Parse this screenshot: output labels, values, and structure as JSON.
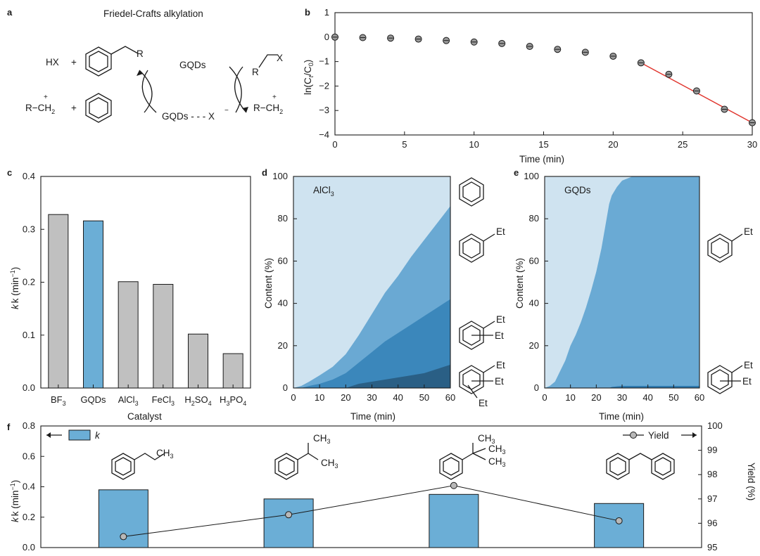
{
  "panel_labels": {
    "a": "a",
    "b": "b",
    "c": "c",
    "d": "d",
    "e": "e",
    "f": "f"
  },
  "scheme": {
    "title": "Friedel-Crafts alkylation",
    "hx": "HX",
    "plus": "+",
    "r_sub": "R",
    "carbocation": "R−CH",
    "carbocation_sub": "2",
    "plus_charge": "+",
    "gqds": "GQDs",
    "complex": "GQDs - - - X",
    "minus_charge": "−",
    "x_sub": "X",
    "r_reagent": "R"
  },
  "structures": {
    "et": "Et",
    "ch3": "CH",
    "ch3_sub": "3"
  },
  "chart_data": [
    {
      "id": "b",
      "type": "scatter",
      "title": "",
      "xlabel": "Time (min)",
      "ylabel": "ln(C",
      "ylabel_sub1": "t",
      "ylabel_mid": "/C",
      "ylabel_sub2": "0",
      "ylabel_end": ")",
      "xlim": [
        0,
        30
      ],
      "ylim": [
        -4,
        1
      ],
      "xticks": [
        0,
        5,
        10,
        15,
        20,
        25,
        30
      ],
      "yticks": [
        1,
        0,
        -1,
        -2,
        -3,
        -4
      ],
      "x": [
        0,
        2,
        4,
        6,
        8,
        10,
        12,
        14,
        16,
        18,
        20,
        22,
        24,
        26,
        28,
        30
      ],
      "y": [
        0,
        -0.02,
        -0.04,
        -0.08,
        -0.14,
        -0.2,
        -0.26,
        -0.38,
        -0.5,
        -0.62,
        -0.78,
        -1.05,
        -1.52,
        -2.2,
        -2.95,
        -3.5
      ],
      "fit_line": {
        "x": [
          22,
          30
        ],
        "y": [
          -1.05,
          -3.5
        ],
        "color": "#e0332b"
      }
    },
    {
      "id": "c",
      "type": "bar",
      "xlabel": "Catalyst",
      "ylabel": "k (min",
      "ylabel_sup": "−1",
      "ylabel_end": ")",
      "ylim": [
        0,
        0.4
      ],
      "yticks": [
        0.0,
        0.1,
        0.2,
        0.3,
        0.4
      ],
      "ytick_labels": [
        "0.0",
        "0.1",
        "0.2",
        "0.3",
        "0.4"
      ],
      "categories": [
        {
          "main": "BF",
          "sub": "3",
          "tail": "",
          "sub2": ""
        },
        {
          "main": "GQDs",
          "sub": "",
          "tail": "",
          "sub2": ""
        },
        {
          "main": "AlCl",
          "sub": "3",
          "tail": "",
          "sub2": ""
        },
        {
          "main": "FeCl",
          "sub": "3",
          "tail": "",
          "sub2": ""
        },
        {
          "main": "H",
          "sub": "2",
          "tail": "SO",
          "sub2": "4"
        },
        {
          "main": "H",
          "sub": "3",
          "tail": "PO",
          "sub2": "4"
        }
      ],
      "values": [
        0.328,
        0.316,
        0.201,
        0.196,
        0.102,
        0.065
      ],
      "colors": [
        "#c0c0c0",
        "#6baed6",
        "#c0c0c0",
        "#c0c0c0",
        "#c0c0c0",
        "#c0c0c0"
      ]
    },
    {
      "id": "d",
      "type": "area",
      "label": "AlCl",
      "label_sub": "3",
      "xlabel": "Time (min)",
      "ylabel": "Content (%)",
      "xlim": [
        0,
        60
      ],
      "ylim": [
        0,
        100
      ],
      "xticks": [
        0,
        10,
        20,
        30,
        40,
        50,
        60
      ],
      "yticks": [
        0,
        20,
        40,
        60,
        80,
        100
      ],
      "x": [
        0,
        3,
        6,
        10,
        15,
        20,
        25,
        30,
        35,
        40,
        45,
        50,
        55,
        60
      ],
      "boundaries": [
        {
          "name": "ethylbenzene+",
          "values": [
            0,
            1,
            3,
            6,
            10,
            16,
            25,
            35,
            45,
            53,
            62,
            70,
            78,
            86
          ],
          "color": "#6aa9d3"
        },
        {
          "name": "diethylbenzene+",
          "values": [
            0,
            0,
            1,
            2,
            4,
            7,
            12,
            17,
            22,
            26,
            30,
            34,
            38,
            42
          ],
          "color": "#3b87bb"
        },
        {
          "name": "triethylbenzene",
          "values": [
            0,
            0,
            0,
            0,
            0,
            0,
            2,
            3,
            4,
            5,
            6,
            7,
            9,
            11
          ],
          "color": "#2a5f85"
        }
      ],
      "background": "#cfe3f0"
    },
    {
      "id": "e",
      "type": "area",
      "label": "GQDs",
      "xlabel": "Time (min)",
      "ylabel": "Content (%)",
      "xlim": [
        0,
        60
      ],
      "ylim": [
        0,
        100
      ],
      "xticks": [
        0,
        10,
        20,
        30,
        40,
        50,
        60
      ],
      "yticks": [
        0,
        20,
        40,
        60,
        80,
        100
      ],
      "x": [
        0,
        2,
        4,
        6,
        8,
        10,
        12,
        14,
        16,
        18,
        20,
        22,
        24,
        25,
        26,
        28,
        30,
        32,
        34,
        60
      ],
      "boundaries": [
        {
          "name": "ethylbenzene+",
          "values": [
            0,
            1,
            3,
            8,
            13,
            20,
            25,
            31,
            38,
            46,
            55,
            66,
            80,
            87,
            91,
            95,
            98,
            99,
            100,
            100
          ],
          "color": "#6aaad4"
        },
        {
          "name": "triethylbenzene",
          "values": [
            0,
            0,
            0,
            0,
            0,
            0,
            0,
            0,
            0,
            0,
            0,
            0,
            0,
            0,
            0.5,
            0.8,
            1,
            1,
            1,
            1
          ],
          "color": "#2f7ab0"
        }
      ],
      "background": "#cfe3f0"
    },
    {
      "id": "f",
      "type": "bar+line",
      "ylabel_left": "k (min",
      "ylabel_left_sup": "−1",
      "ylabel_left_end": ")",
      "ylabel_right": "Yield (%)",
      "ylim_left": [
        0,
        0.8
      ],
      "ylim_right": [
        95,
        100
      ],
      "yticks_left": [
        "0.0",
        "0.2",
        "0.4",
        "0.6",
        "0.8"
      ],
      "yticks_right": [
        95,
        96,
        97,
        98,
        99,
        100
      ],
      "legend_k": "k",
      "legend_yield": "Yield",
      "categories": [
        "propylbenzene",
        "cumene",
        "tert-butylbenzene",
        "diphenylmethane"
      ],
      "k_values": [
        0.38,
        0.32,
        0.35,
        0.29
      ],
      "yield_values": [
        95.45,
        96.35,
        97.55,
        96.1
      ],
      "bar_color": "#6baed6"
    }
  ]
}
